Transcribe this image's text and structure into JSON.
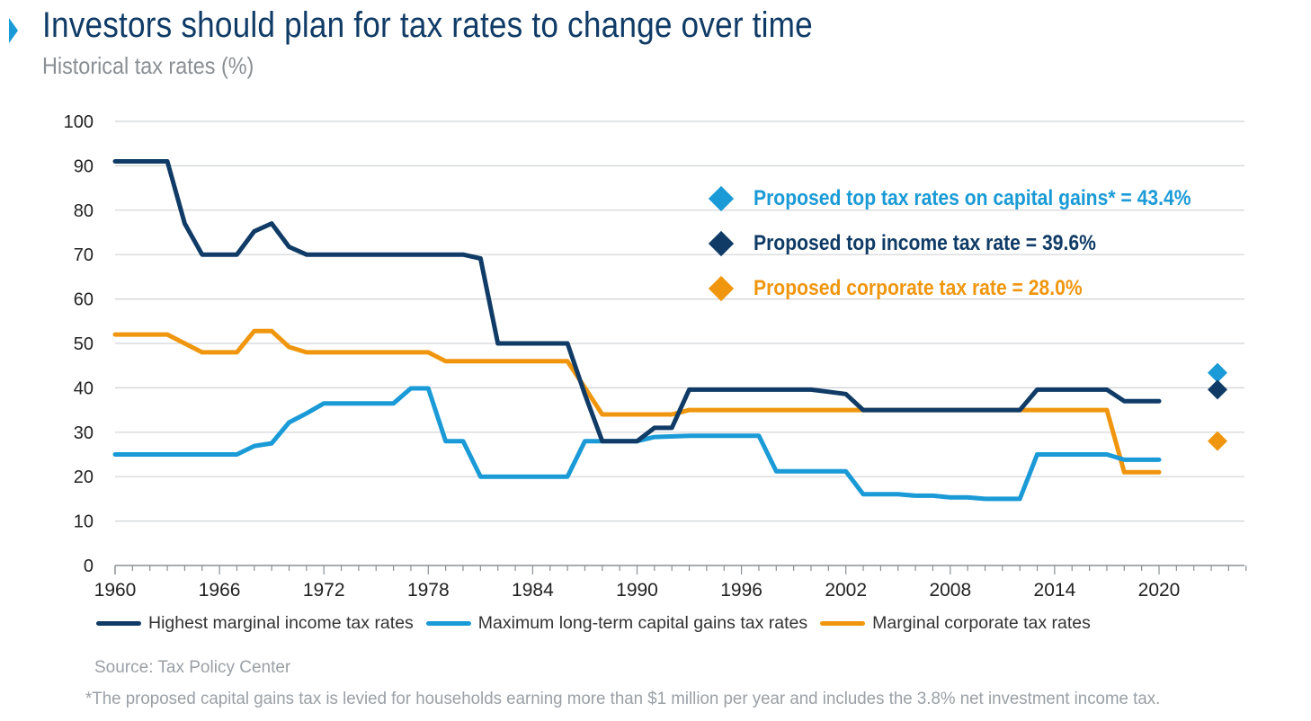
{
  "header": {
    "title": "Investors should plan for tax rates to change over time",
    "subtitle": "Historical tax rates (%)"
  },
  "callouts": [
    {
      "text": "Proposed top tax rates on capital gains* = 43.4%",
      "color": "#1a9ad6"
    },
    {
      "text": "Proposed top income tax rate = 39.6%",
      "color": "#0f3b66"
    },
    {
      "text": "Proposed corporate tax rate = 28.0%",
      "color": "#f0960e"
    }
  ],
  "source": "Source: Tax Policy Center",
  "footnote": "*The proposed capital gains tax is levied for households earning more than $1 million per year and includes the 3.8% net investment income tax.",
  "chart_data": {
    "type": "line",
    "title": "Investors should plan for tax rates to change over time",
    "subtitle": "Historical tax rates (%)",
    "xlim": [
      1960,
      2025
    ],
    "ylim": [
      0,
      100
    ],
    "y_ticks": [
      0,
      10,
      20,
      30,
      40,
      50,
      60,
      70,
      80,
      90,
      100
    ],
    "x_ticks": [
      1960,
      1966,
      1972,
      1978,
      1984,
      1990,
      1996,
      2002,
      2008,
      2014,
      2020
    ],
    "grid": true,
    "legend_position": "bottom",
    "series": [
      {
        "name": "Highest marginal income tax rates",
        "color": "#0f3b66",
        "points": [
          [
            1960,
            91
          ],
          [
            1963,
            91
          ],
          [
            1964,
            77
          ],
          [
            1965,
            70
          ],
          [
            1967,
            70
          ],
          [
            1968,
            75.25
          ],
          [
            1969,
            77
          ],
          [
            1970,
            71.75
          ],
          [
            1971,
            70
          ],
          [
            1980,
            70
          ],
          [
            1981,
            69.13
          ],
          [
            1982,
            50
          ],
          [
            1986,
            50
          ],
          [
            1987,
            38.5
          ],
          [
            1988,
            28
          ],
          [
            1990,
            28
          ],
          [
            1991,
            31
          ],
          [
            1992,
            31
          ],
          [
            1993,
            39.6
          ],
          [
            2000,
            39.6
          ],
          [
            2001,
            39.1
          ],
          [
            2002,
            38.6
          ],
          [
            2003,
            35
          ],
          [
            2012,
            35
          ],
          [
            2013,
            39.6
          ],
          [
            2017,
            39.6
          ],
          [
            2018,
            37
          ],
          [
            2020,
            37
          ]
        ]
      },
      {
        "name": "Maximum long-term capital gains tax rates",
        "color": "#1a9ad6",
        "points": [
          [
            1960,
            25
          ],
          [
            1967,
            25
          ],
          [
            1968,
            26.9
          ],
          [
            1969,
            27.5
          ],
          [
            1970,
            32.21
          ],
          [
            1971,
            34.25
          ],
          [
            1972,
            36.5
          ],
          [
            1976,
            36.5
          ],
          [
            1977,
            39.875
          ],
          [
            1978,
            39.875
          ],
          [
            1979,
            28
          ],
          [
            1980,
            28
          ],
          [
            1981,
            20
          ],
          [
            1986,
            20
          ],
          [
            1987,
            28
          ],
          [
            1990,
            28
          ],
          [
            1991,
            28.93
          ],
          [
            1993,
            29.19
          ],
          [
            1997,
            29.19
          ],
          [
            1998,
            21.19
          ],
          [
            2002,
            21.19
          ],
          [
            2003,
            16.05
          ],
          [
            2005,
            16.05
          ],
          [
            2006,
            15.7
          ],
          [
            2007,
            15.7
          ],
          [
            2008,
            15.35
          ],
          [
            2009,
            15.35
          ],
          [
            2010,
            15
          ],
          [
            2012,
            15
          ],
          [
            2013,
            25
          ],
          [
            2017,
            25
          ],
          [
            2018,
            23.8
          ],
          [
            2020,
            23.8
          ]
        ]
      },
      {
        "name": "Marginal corporate tax rates",
        "color": "#f0960e",
        "points": [
          [
            1960,
            52
          ],
          [
            1963,
            52
          ],
          [
            1964,
            50
          ],
          [
            1965,
            48
          ],
          [
            1967,
            48
          ],
          [
            1968,
            52.8
          ],
          [
            1969,
            52.8
          ],
          [
            1970,
            49.2
          ],
          [
            1971,
            48
          ],
          [
            1978,
            48
          ],
          [
            1979,
            46
          ],
          [
            1986,
            46
          ],
          [
            1987,
            40
          ],
          [
            1988,
            34
          ],
          [
            1992,
            34
          ],
          [
            1993,
            35
          ],
          [
            2017,
            35
          ],
          [
            2018,
            21
          ],
          [
            2020,
            21
          ]
        ]
      }
    ],
    "proposed_points": [
      {
        "label": "Proposed top tax rates on capital gains*",
        "value": 43.4,
        "color": "#1a9ad6"
      },
      {
        "label": "Proposed top income tax rate",
        "value": 39.6,
        "color": "#0f3b66"
      },
      {
        "label": "Proposed corporate tax rate",
        "value": 28.0,
        "color": "#f0960e"
      }
    ]
  }
}
